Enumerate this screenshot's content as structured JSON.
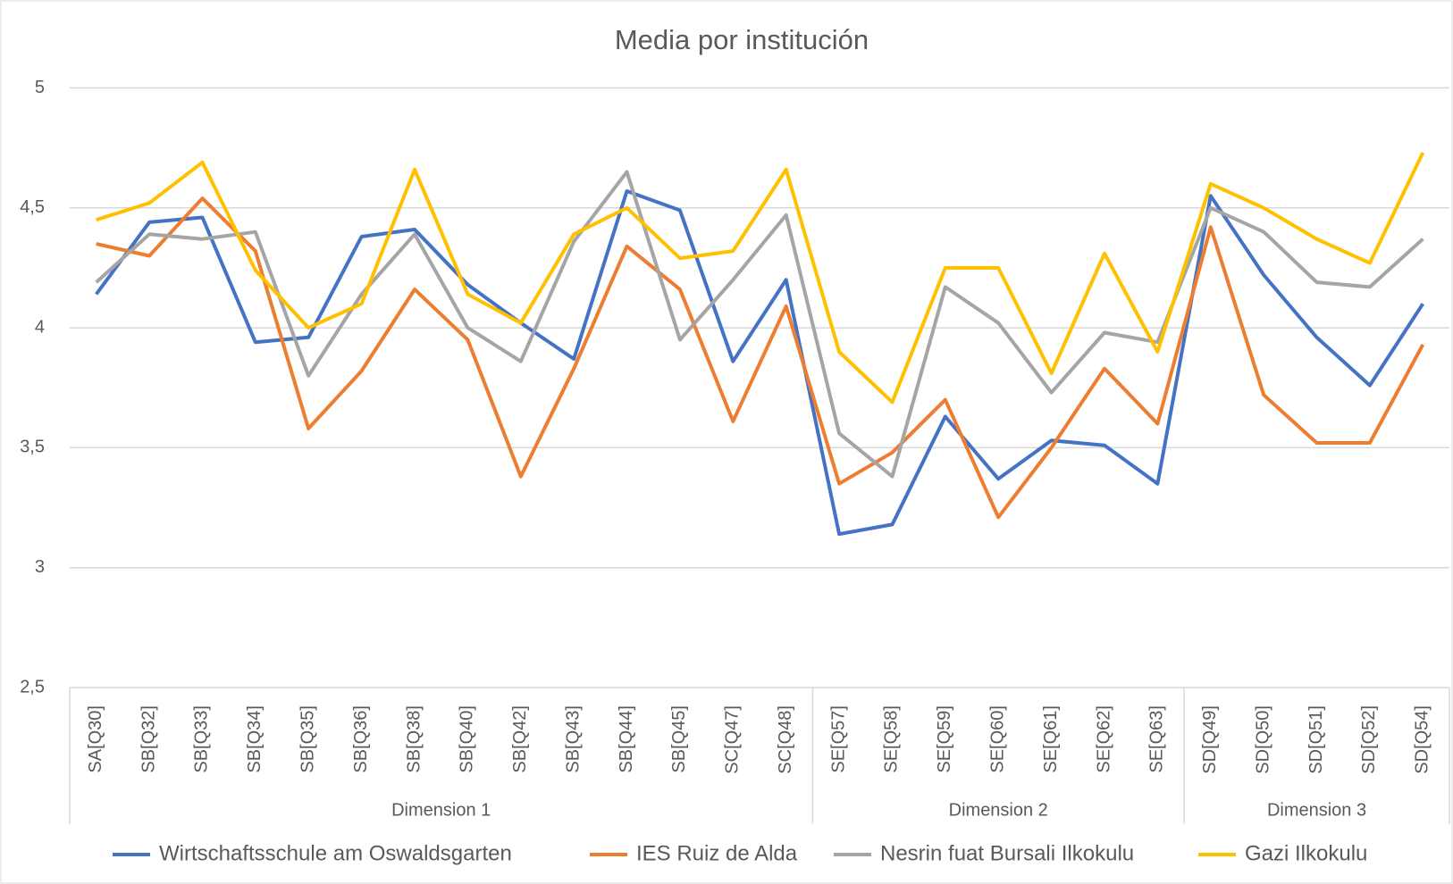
{
  "chart_data": {
    "type": "line",
    "title": "Media por institución",
    "groups": [
      {
        "label": "Dimension 1",
        "categories": [
          "SA[Q30]",
          "SB[Q32]",
          "SB[Q33]",
          "SB[Q34]",
          "SB[Q35]",
          "SB[Q36]",
          "SB[Q38]",
          "SB[Q40]",
          "SB[Q42]",
          "SB[Q43]",
          "SB[Q44]",
          "SB[Q45]",
          "SC[Q47]",
          "SC[Q48]"
        ]
      },
      {
        "label": "Dimension 2",
        "categories": [
          "SE[Q57]",
          "SE[Q58]",
          "SE[Q59]",
          "SE[Q60]",
          "SE[Q61]",
          "SE[Q62]",
          "SE[Q63]"
        ]
      },
      {
        "label": "Dimension 3",
        "categories": [
          "SD[Q49]",
          "SD[Q50]",
          "SD[Q51]",
          "SD[Q52]",
          "SD[Q54]"
        ]
      }
    ],
    "series": [
      {
        "name": "Wirtschaftsschule am Oswaldsgarten",
        "color": "#4472c4",
        "values": [
          4.14,
          4.44,
          4.46,
          3.94,
          3.96,
          4.38,
          4.41,
          4.18,
          4.02,
          3.87,
          4.57,
          4.49,
          3.86,
          4.2,
          3.14,
          3.18,
          3.63,
          3.37,
          3.53,
          3.51,
          3.35,
          4.55,
          4.22,
          3.96,
          3.76,
          4.1
        ]
      },
      {
        "name": "IES Ruiz de Alda",
        "color": "#ed7d31",
        "values": [
          4.35,
          4.3,
          4.54,
          4.32,
          3.58,
          3.82,
          4.16,
          3.95,
          3.38,
          3.83,
          4.34,
          4.16,
          3.61,
          4.09,
          3.35,
          3.48,
          3.7,
          3.21,
          3.5,
          3.83,
          3.6,
          4.42,
          3.72,
          3.52,
          3.52,
          3.93
        ]
      },
      {
        "name": "Nesrin fuat Bursali Ilkokulu",
        "color": "#a5a5a5",
        "values": [
          4.19,
          4.39,
          4.37,
          4.4,
          3.8,
          4.14,
          4.39,
          4.0,
          3.86,
          4.36,
          4.65,
          3.95,
          4.2,
          4.47,
          3.56,
          3.38,
          4.17,
          4.02,
          3.73,
          3.98,
          3.94,
          4.5,
          4.4,
          4.19,
          4.17,
          4.37
        ]
      },
      {
        "name": "Gazi Ilkokulu",
        "color": "#ffc000",
        "values": [
          4.45,
          4.52,
          4.69,
          4.24,
          4.0,
          4.1,
          4.66,
          4.14,
          4.02,
          4.39,
          4.5,
          4.29,
          4.32,
          4.66,
          3.9,
          3.69,
          4.25,
          4.25,
          3.81,
          4.31,
          3.9,
          4.6,
          4.5,
          4.37,
          4.27,
          4.73
        ]
      }
    ],
    "ylim": [
      2.5,
      5
    ],
    "yticks": [
      {
        "value": 2.5,
        "label": "2,5"
      },
      3,
      {
        "value": 3.5,
        "label": "3,5"
      },
      4,
      {
        "value": 4.5,
        "label": "4,5"
      },
      5
    ],
    "grid": true,
    "legend": "bottom"
  }
}
